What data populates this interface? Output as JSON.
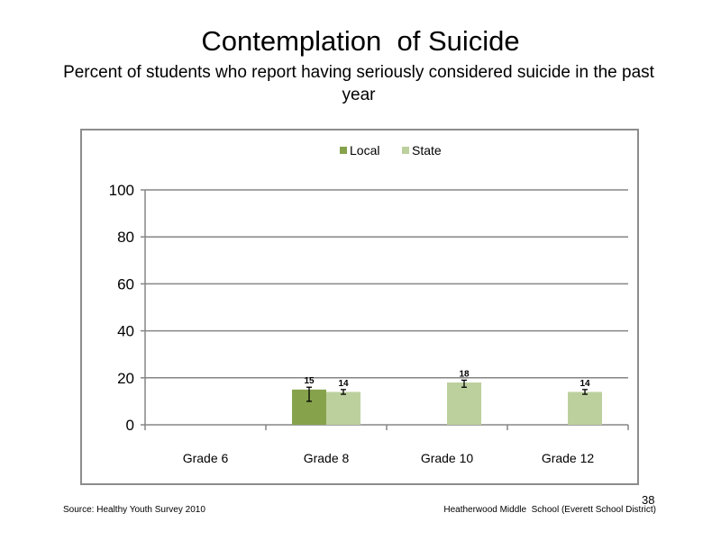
{
  "slide": {
    "title": "Contemplation  of Suicide",
    "subtitle": "Percent of students who report having seriously considered suicide in the past year",
    "source": "Source: Healthy Youth Survey 2010",
    "school": "Heatherwood Middle  School (Everett School District)",
    "page_number": "38"
  },
  "chart_data": {
    "type": "bar",
    "title": "",
    "xlabel": "",
    "ylabel": "",
    "categories": [
      "Grade 6",
      "Grade 8",
      "Grade 10",
      "Grade 12"
    ],
    "ylim": [
      0,
      100
    ],
    "yticks": [
      0,
      20,
      40,
      60,
      80,
      100
    ],
    "grid": true,
    "legend_position": "top",
    "series": [
      {
        "name": "Local",
        "color": "#86a34c",
        "values": [
          null,
          15,
          null,
          null
        ],
        "labels": [
          "",
          "15",
          "",
          ""
        ],
        "error_low": [
          null,
          10,
          null,
          null
        ],
        "error_high": [
          null,
          16,
          null,
          null
        ]
      },
      {
        "name": "State",
        "color": "#bcd09d",
        "values": [
          null,
          14,
          18,
          14
        ],
        "labels": [
          "",
          "14",
          "18",
          "14"
        ],
        "error_low": [
          null,
          13,
          16,
          13
        ],
        "error_high": [
          null,
          15,
          19,
          15
        ]
      }
    ]
  }
}
